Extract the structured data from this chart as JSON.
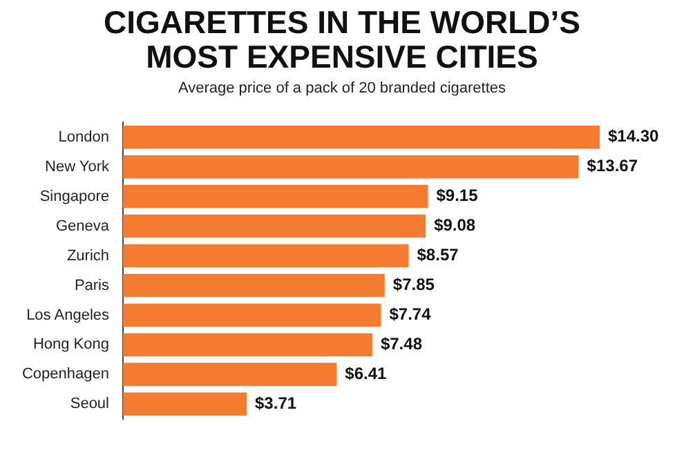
{
  "chart_data": {
    "type": "bar",
    "orientation": "horizontal",
    "title": "CIGARETTES IN THE WORLD’S MOST EXPENSIVE CITIES",
    "subtitle": "Average price of a pack of 20 branded cigarettes",
    "categories": [
      "London",
      "New York",
      "Singapore",
      "Geneva",
      "Zurich",
      "Paris",
      "Los Angeles",
      "Hong Kong",
      "Copenhagen",
      "Seoul"
    ],
    "values": [
      14.3,
      13.67,
      9.15,
      9.08,
      8.57,
      7.85,
      7.74,
      7.48,
      6.41,
      3.71
    ],
    "value_labels": [
      "$14.30",
      "$13.67",
      "$9.15",
      "$9.08",
      "$8.57",
      "$7.85",
      "$7.74",
      "$7.48",
      "$6.41",
      "$3.71"
    ],
    "color": "#f47b2f",
    "grid": false,
    "legend": false
  }
}
